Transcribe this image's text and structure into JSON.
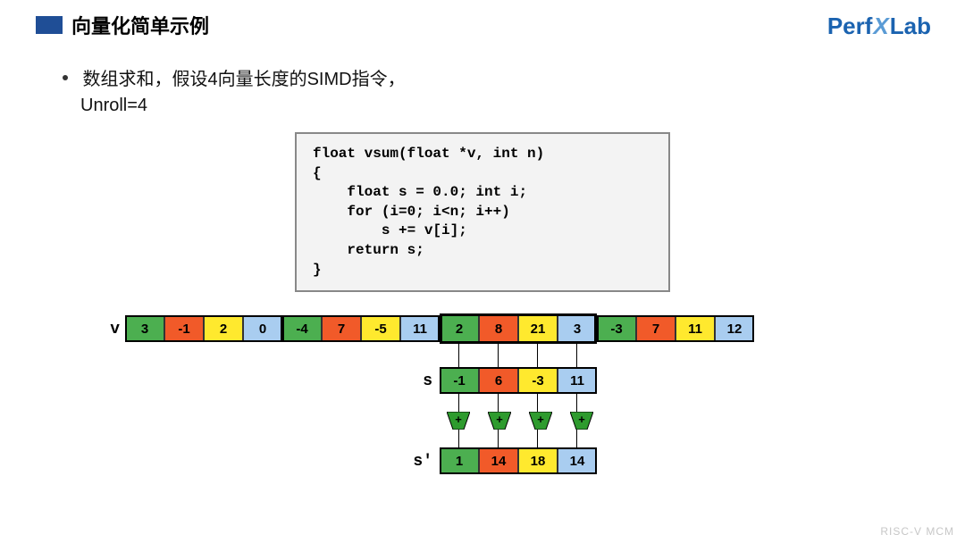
{
  "header": {
    "title": "向量化简单示例"
  },
  "logo": {
    "part1": "Perf",
    "x": "X",
    "part2": "Lab"
  },
  "bullet": {
    "line1": "数组求和，假设4向量长度的SIMD指令，",
    "line2": "Unroll=4"
  },
  "code": "float vsum(float *v, int n)\n{\n    float s = 0.0; int i;\n    for (i=0; i<n; i++)\n        s += v[i];\n    return s;\n}",
  "colors": {
    "green": "#4caf50",
    "orange": "#f15a29",
    "yellow": "#ffe92e",
    "blue": "#a9cdf0",
    "adder": "#2e9b2e"
  },
  "vector": {
    "label": "v",
    "groups": [
      [
        {
          "v": "3",
          "c": "green"
        },
        {
          "v": "-1",
          "c": "orange"
        },
        {
          "v": "2",
          "c": "yellow"
        },
        {
          "v": "0",
          "c": "blue"
        }
      ],
      [
        {
          "v": "-4",
          "c": "green"
        },
        {
          "v": "7",
          "c": "orange"
        },
        {
          "v": "-5",
          "c": "yellow"
        },
        {
          "v": "11",
          "c": "blue"
        }
      ],
      [
        {
          "v": "2",
          "c": "green"
        },
        {
          "v": "8",
          "c": "orange"
        },
        {
          "v": "21",
          "c": "yellow"
        },
        {
          "v": "3",
          "c": "blue"
        }
      ],
      [
        {
          "v": "-3",
          "c": "green"
        },
        {
          "v": "7",
          "c": "orange"
        },
        {
          "v": "11",
          "c": "yellow"
        },
        {
          "v": "12",
          "c": "blue"
        }
      ]
    ]
  },
  "s": {
    "label": "s",
    "cells": [
      {
        "v": "-1",
        "c": "green"
      },
      {
        "v": "6",
        "c": "orange"
      },
      {
        "v": "-3",
        "c": "yellow"
      },
      {
        "v": "11",
        "c": "blue"
      }
    ]
  },
  "sp": {
    "label": "s'",
    "cells": [
      {
        "v": "1",
        "c": "green"
      },
      {
        "v": "14",
        "c": "orange"
      },
      {
        "v": "18",
        "c": "yellow"
      },
      {
        "v": "14",
        "c": "blue"
      }
    ]
  },
  "adder_symbol": "+",
  "watermark": "RISC-V MCM"
}
